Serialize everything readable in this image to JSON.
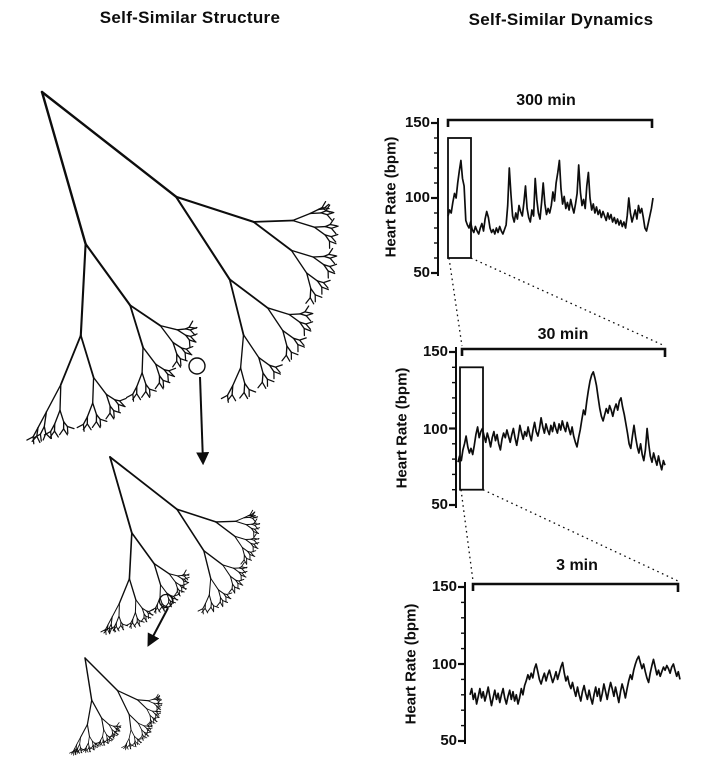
{
  "titles": {
    "left_panel": "Self-Similar Structure",
    "right_panel": "Self-Similar Dynamics"
  },
  "ink_color": "#0d0d0d",
  "chart_data": [
    {
      "type": "line",
      "title": "300 min",
      "ylabel": "Heart Rate (bpm)",
      "yticks": [
        50,
        100,
        150
      ],
      "ylim": [
        50,
        150
      ],
      "minor_tick_step": 10,
      "grid": false,
      "zoom_box_bpm": {
        "low": 60,
        "high": 140
      },
      "values": [
        88,
        92,
        90,
        97,
        103,
        100,
        110,
        118,
        125,
        113,
        108,
        85,
        82,
        80,
        84,
        79,
        77,
        81,
        78,
        76,
        80,
        83,
        78,
        86,
        91,
        87,
        80,
        77,
        79,
        76,
        80,
        77,
        81,
        78,
        76,
        79,
        82,
        95,
        120,
        102,
        88,
        84,
        90,
        86,
        95,
        91,
        88,
        97,
        108,
        93,
        87,
        84,
        92,
        88,
        113,
        99,
        90,
        86,
        97,
        110,
        96,
        89,
        93,
        90,
        95,
        104,
        98,
        110,
        117,
        125,
        106,
        96,
        101,
        93,
        97,
        92,
        99,
        94,
        90,
        96,
        103,
        122,
        104,
        95,
        99,
        93,
        108,
        117,
        100,
        92,
        96,
        90,
        94,
        89,
        92,
        87,
        91,
        88,
        85,
        90,
        86,
        89,
        84,
        87,
        83,
        86,
        82,
        85,
        81,
        84,
        80,
        88,
        100,
        90,
        84,
        88,
        92,
        86,
        95,
        90,
        93,
        87,
        80,
        78,
        83,
        88,
        93,
        100
      ]
    },
    {
      "type": "line",
      "title": "30 min",
      "ylabel": "Heart Rate (bpm)",
      "yticks": [
        50,
        100,
        150
      ],
      "ylim": [
        50,
        150
      ],
      "minor_tick_step": 10,
      "grid": false,
      "zoom_box_bpm": {
        "low": 60,
        "high": 140
      },
      "values": [
        78,
        82,
        79,
        86,
        90,
        95,
        88,
        84,
        87,
        83,
        89,
        96,
        101,
        94,
        98,
        100,
        95,
        91,
        97,
        93,
        88,
        94,
        98,
        92,
        96,
        90,
        86,
        93,
        97,
        94,
        99,
        95,
        91,
        96,
        100,
        94,
        89,
        95,
        102,
        97,
        93,
        98,
        95,
        101,
        96,
        92,
        99,
        104,
        98,
        95,
        100,
        107,
        101,
        97,
        103,
        99,
        96,
        102,
        98,
        104,
        100,
        97,
        103,
        99,
        105,
        101,
        98,
        104,
        100,
        96,
        101,
        95,
        91,
        88,
        94,
        99,
        106,
        112,
        109,
        118,
        125,
        131,
        135,
        137,
        133,
        128,
        120,
        113,
        108,
        105,
        109,
        113,
        110,
        115,
        112,
        108,
        113,
        116,
        112,
        118,
        120,
        114,
        109,
        103,
        97,
        90,
        87,
        95,
        102,
        94,
        88,
        84,
        90,
        83,
        79,
        86,
        100,
        90,
        82,
        78,
        84,
        80,
        76,
        82,
        77,
        73,
        79,
        76
      ]
    },
    {
      "type": "line",
      "title": "3 min",
      "ylabel": "Heart Rate (bpm)",
      "yticks": [
        50,
        100,
        150
      ],
      "ylim": [
        50,
        150
      ],
      "minor_tick_step": 10,
      "grid": false,
      "zoom_box_bpm": null,
      "values": [
        80,
        84,
        77,
        81,
        74,
        79,
        84,
        78,
        82,
        76,
        80,
        85,
        79,
        73,
        78,
        83,
        77,
        81,
        75,
        80,
        84,
        78,
        74,
        79,
        83,
        77,
        82,
        76,
        80,
        74,
        78,
        84,
        80,
        86,
        89,
        93,
        90,
        94,
        91,
        97,
        100,
        95,
        90,
        87,
        91,
        94,
        89,
        93,
        96,
        92,
        88,
        91,
        95,
        90,
        94,
        98,
        101,
        94,
        89,
        92,
        87,
        84,
        88,
        83,
        79,
        85,
        80,
        76,
        82,
        86,
        81,
        77,
        83,
        78,
        74,
        80,
        85,
        79,
        84,
        76,
        81,
        87,
        82,
        77,
        83,
        88,
        84,
        79,
        85,
        80,
        75,
        82,
        87,
        83,
        78,
        84,
        89,
        93,
        90,
        96,
        100,
        103,
        105,
        101,
        97,
        100,
        95,
        91,
        88,
        94,
        99,
        103,
        98,
        93,
        96,
        92,
        95,
        98,
        96,
        99,
        97,
        94,
        98,
        100,
        96,
        92,
        95,
        90
      ]
    }
  ]
}
